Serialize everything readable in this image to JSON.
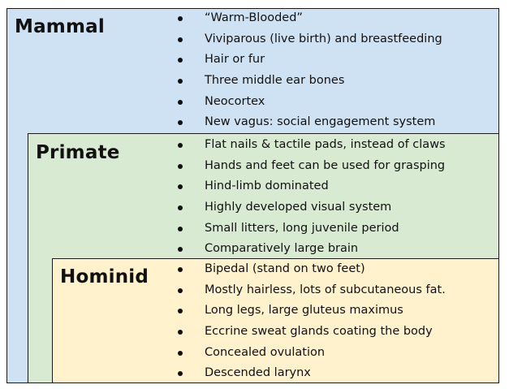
{
  "diagram": {
    "type": "nested-classification",
    "levels": [
      {
        "title": "Mammal",
        "color": "#cfe2f3",
        "traits": [
          "“Warm-Blooded”",
          "Viviparous (live birth) and breastfeeding",
          "Hair or fur",
          "Three middle ear bones",
          "Neocortex",
          "New vagus: social engagement system"
        ]
      },
      {
        "title": "Primate",
        "color": "#d9ead3",
        "traits": [
          "Flat nails & tactile pads, instead of claws",
          "Hands and feet can be used for grasping",
          "Hind-limb dominated",
          "Highly developed visual system",
          "Small litters, long juvenile period",
          "Comparatively large brain"
        ]
      },
      {
        "title": "Hominid",
        "color": "#fff2cc",
        "traits": [
          "Bipedal (stand on two feet)",
          "Mostly hairless, lots of subcutaneous fat.",
          "Long legs, large gluteus maximus",
          "Eccrine sweat glands coating the body",
          "Concealed ovulation",
          "Descended larynx"
        ]
      }
    ]
  }
}
